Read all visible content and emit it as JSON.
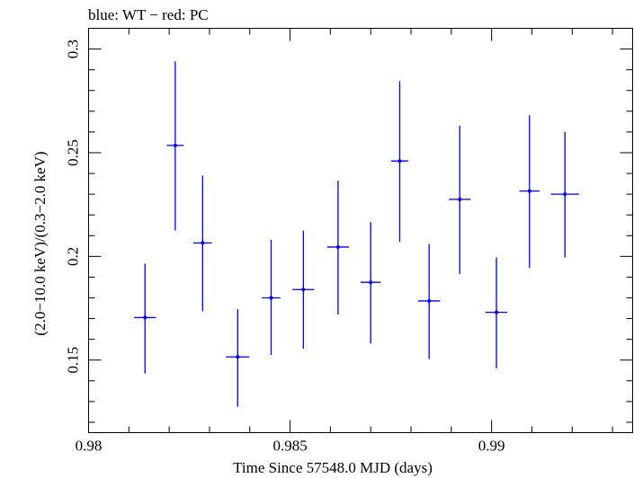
{
  "chart_data": {
    "type": "scatter",
    "title": "blue: WT − red: PC",
    "xlabel": "Time Since 57548.0 MJD (days)",
    "ylabel": "(2.0−10.0 keV)/(0.3−2.0 keV)",
    "xlim": [
      0.98,
      0.9935
    ],
    "ylim": [
      0.115,
      0.31
    ],
    "x_ticks": [
      {
        "value": 0.98,
        "label": "0.98"
      },
      {
        "value": 0.985,
        "label": "0.985"
      },
      {
        "value": 0.99,
        "label": "0.99"
      }
    ],
    "y_ticks": [
      {
        "value": 0.15,
        "label": "0.15"
      },
      {
        "value": 0.2,
        "label": "0.2"
      },
      {
        "value": 0.25,
        "label": "0.25"
      },
      {
        "value": 0.3,
        "label": "0.3"
      }
    ],
    "grid": false,
    "series": [
      {
        "color": "#0000ee",
        "points": [
          {
            "x": 0.9814,
            "xerr": 0.00027,
            "y": 0.1705,
            "ylo": 0.1435,
            "yhi": 0.1965
          },
          {
            "x": 0.98215,
            "xerr": 0.00021,
            "y": 0.2535,
            "ylo": 0.2125,
            "yhi": 0.294
          },
          {
            "x": 0.98283,
            "xerr": 0.00023,
            "y": 0.2065,
            "ylo": 0.1735,
            "yhi": 0.239
          },
          {
            "x": 0.9837,
            "xerr": 0.00029,
            "y": 0.1515,
            "ylo": 0.1275,
            "yhi": 0.1745
          },
          {
            "x": 0.98453,
            "xerr": 0.00023,
            "y": 0.18,
            "ylo": 0.1525,
            "yhi": 0.208
          },
          {
            "x": 0.98533,
            "xerr": 0.00027,
            "y": 0.184,
            "ylo": 0.1555,
            "yhi": 0.2125
          },
          {
            "x": 0.98619,
            "xerr": 0.00027,
            "y": 0.2045,
            "ylo": 0.172,
            "yhi": 0.2365
          },
          {
            "x": 0.987,
            "xerr": 0.00025,
            "y": 0.1875,
            "ylo": 0.158,
            "yhi": 0.2165
          },
          {
            "x": 0.98772,
            "xerr": 0.00021,
            "y": 0.246,
            "ylo": 0.207,
            "yhi": 0.2845
          },
          {
            "x": 0.98845,
            "xerr": 0.00027,
            "y": 0.1785,
            "ylo": 0.1505,
            "yhi": 0.206
          },
          {
            "x": 0.98921,
            "xerr": 0.00027,
            "y": 0.2275,
            "ylo": 0.1915,
            "yhi": 0.263
          },
          {
            "x": 0.99012,
            "xerr": 0.00027,
            "y": 0.173,
            "ylo": 0.146,
            "yhi": 0.1995
          },
          {
            "x": 0.99094,
            "xerr": 0.00025,
            "y": 0.2315,
            "ylo": 0.1945,
            "yhi": 0.268
          },
          {
            "x": 0.99182,
            "xerr": 0.00035,
            "y": 0.23,
            "ylo": 0.1995,
            "yhi": 0.26
          }
        ]
      }
    ]
  }
}
